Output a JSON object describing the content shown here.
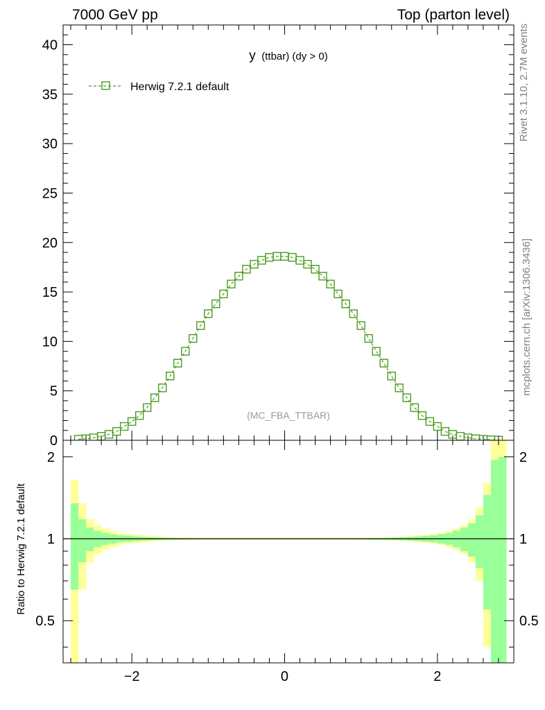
{
  "header": {
    "left": "7000 GeV pp",
    "right": "Top (parton level)"
  },
  "side_labels": {
    "rivet": "Rivet 3.1.10,  2.7M events",
    "mcplots": "mcplots.cern.ch [arXiv:1306.3436]"
  },
  "colors": {
    "series": "#4a9a1e",
    "band_inner": "#99ff99",
    "band_outer": "#ffff99"
  },
  "chart_data": [
    {
      "type": "scatter",
      "title_main": "y",
      "title_rest": "(ttbar) (dy > 0)",
      "watermark": "(MC_FBA_TTBAR)",
      "legend": {
        "label": "Herwig 7.2.1 default",
        "position": "top-left"
      },
      "xlim": [
        -2.9,
        3.0
      ],
      "ylim": [
        0,
        42
      ],
      "yticks": [
        0,
        5,
        10,
        15,
        20,
        25,
        30,
        35,
        40
      ],
      "ytick_labels": [
        "0",
        "5",
        "10",
        "15",
        "20",
        "25",
        "30",
        "35",
        "40"
      ],
      "series": [
        {
          "name": "Herwig 7.2.1 default",
          "x": [
            -2.7,
            -2.6,
            -2.5,
            -2.4,
            -2.3,
            -2.2,
            -2.1,
            -2.0,
            -1.9,
            -1.8,
            -1.7,
            -1.6,
            -1.5,
            -1.4,
            -1.3,
            -1.2,
            -1.1,
            -1.0,
            -0.9,
            -0.8,
            -0.7,
            -0.6,
            -0.5,
            -0.4,
            -0.3,
            -0.2,
            -0.1,
            0.0,
            0.1,
            0.2,
            0.3,
            0.4,
            0.5,
            0.6,
            0.7,
            0.8,
            0.9,
            1.0,
            1.1,
            1.2,
            1.3,
            1.4,
            1.5,
            1.6,
            1.7,
            1.8,
            1.9,
            2.0,
            2.1,
            2.2,
            2.3,
            2.4,
            2.5,
            2.6,
            2.7,
            2.8
          ],
          "y": [
            0.1,
            0.15,
            0.25,
            0.4,
            0.6,
            0.9,
            1.4,
            1.9,
            2.5,
            3.3,
            4.3,
            5.3,
            6.5,
            7.8,
            9.0,
            10.3,
            11.6,
            12.8,
            13.8,
            14.8,
            15.8,
            16.6,
            17.3,
            17.8,
            18.2,
            18.5,
            18.6,
            18.6,
            18.5,
            18.2,
            17.8,
            17.3,
            16.6,
            15.8,
            14.8,
            13.8,
            12.8,
            11.6,
            10.3,
            9.0,
            7.8,
            6.5,
            5.3,
            4.3,
            3.3,
            2.5,
            1.9,
            1.4,
            0.9,
            0.6,
            0.4,
            0.25,
            0.15,
            0.1,
            0.05,
            0.02
          ]
        }
      ]
    },
    {
      "type": "area",
      "ylabel": "Ratio to Herwig 7.2.1 default",
      "xlim": [
        -2.9,
        3.0
      ],
      "ylim": [
        0.35,
        2.3
      ],
      "yticks": [
        0.5,
        1,
        2
      ],
      "ytick_labels": [
        "0.5",
        "1",
        "2"
      ],
      "xticks": [
        -2,
        0,
        2
      ],
      "xtick_labels": [
        "−2",
        "0",
        "2"
      ],
      "bins": [
        -2.8,
        -2.7,
        -2.6,
        -2.5,
        -2.4,
        -2.3,
        -2.2,
        -2.1,
        -2.0,
        -1.9,
        -1.8,
        -1.7,
        -1.6,
        -1.5,
        -1.4,
        -1.3,
        -1.2,
        -1.1,
        -1.0,
        -0.9,
        -0.8,
        -0.7,
        -0.6,
        -0.5,
        -0.4,
        -0.3,
        -0.2,
        -0.1,
        0.0,
        0.1,
        0.2,
        0.3,
        0.4,
        0.5,
        0.6,
        0.7,
        0.8,
        0.9,
        1.0,
        1.1,
        1.2,
        1.3,
        1.4,
        1.5,
        1.6,
        1.7,
        1.8,
        1.9,
        2.0,
        2.1,
        2.2,
        2.3,
        2.4,
        2.5,
        2.6,
        2.7,
        2.8,
        2.9
      ],
      "inner_half_width": [
        0.35,
        0.18,
        0.1,
        0.07,
        0.05,
        0.04,
        0.03,
        0.025,
        0.02,
        0.015,
        0.012,
        0.01,
        0.008,
        0.007,
        0.006,
        0.005,
        0.005,
        0.004,
        0.004,
        0.004,
        0.004,
        0.004,
        0.004,
        0.004,
        0.004,
        0.004,
        0.004,
        0.004,
        0.004,
        0.004,
        0.004,
        0.004,
        0.004,
        0.004,
        0.004,
        0.004,
        0.004,
        0.005,
        0.005,
        0.006,
        0.007,
        0.008,
        0.01,
        0.012,
        0.015,
        0.02,
        0.025,
        0.03,
        0.04,
        0.05,
        0.07,
        0.1,
        0.14,
        0.22,
        0.45,
        0.95,
        1.0
      ],
      "outer_half_width": [
        0.65,
        0.35,
        0.18,
        0.12,
        0.09,
        0.07,
        0.05,
        0.04,
        0.035,
        0.03,
        0.022,
        0.018,
        0.015,
        0.012,
        0.01,
        0.009,
        0.008,
        0.008,
        0.007,
        0.007,
        0.007,
        0.007,
        0.007,
        0.007,
        0.007,
        0.007,
        0.007,
        0.007,
        0.007,
        0.007,
        0.007,
        0.007,
        0.007,
        0.007,
        0.007,
        0.007,
        0.007,
        0.008,
        0.008,
        0.009,
        0.01,
        0.012,
        0.015,
        0.018,
        0.022,
        0.03,
        0.035,
        0.04,
        0.05,
        0.07,
        0.09,
        0.12,
        0.18,
        0.3,
        0.6,
        1.3,
        1.4
      ]
    }
  ]
}
